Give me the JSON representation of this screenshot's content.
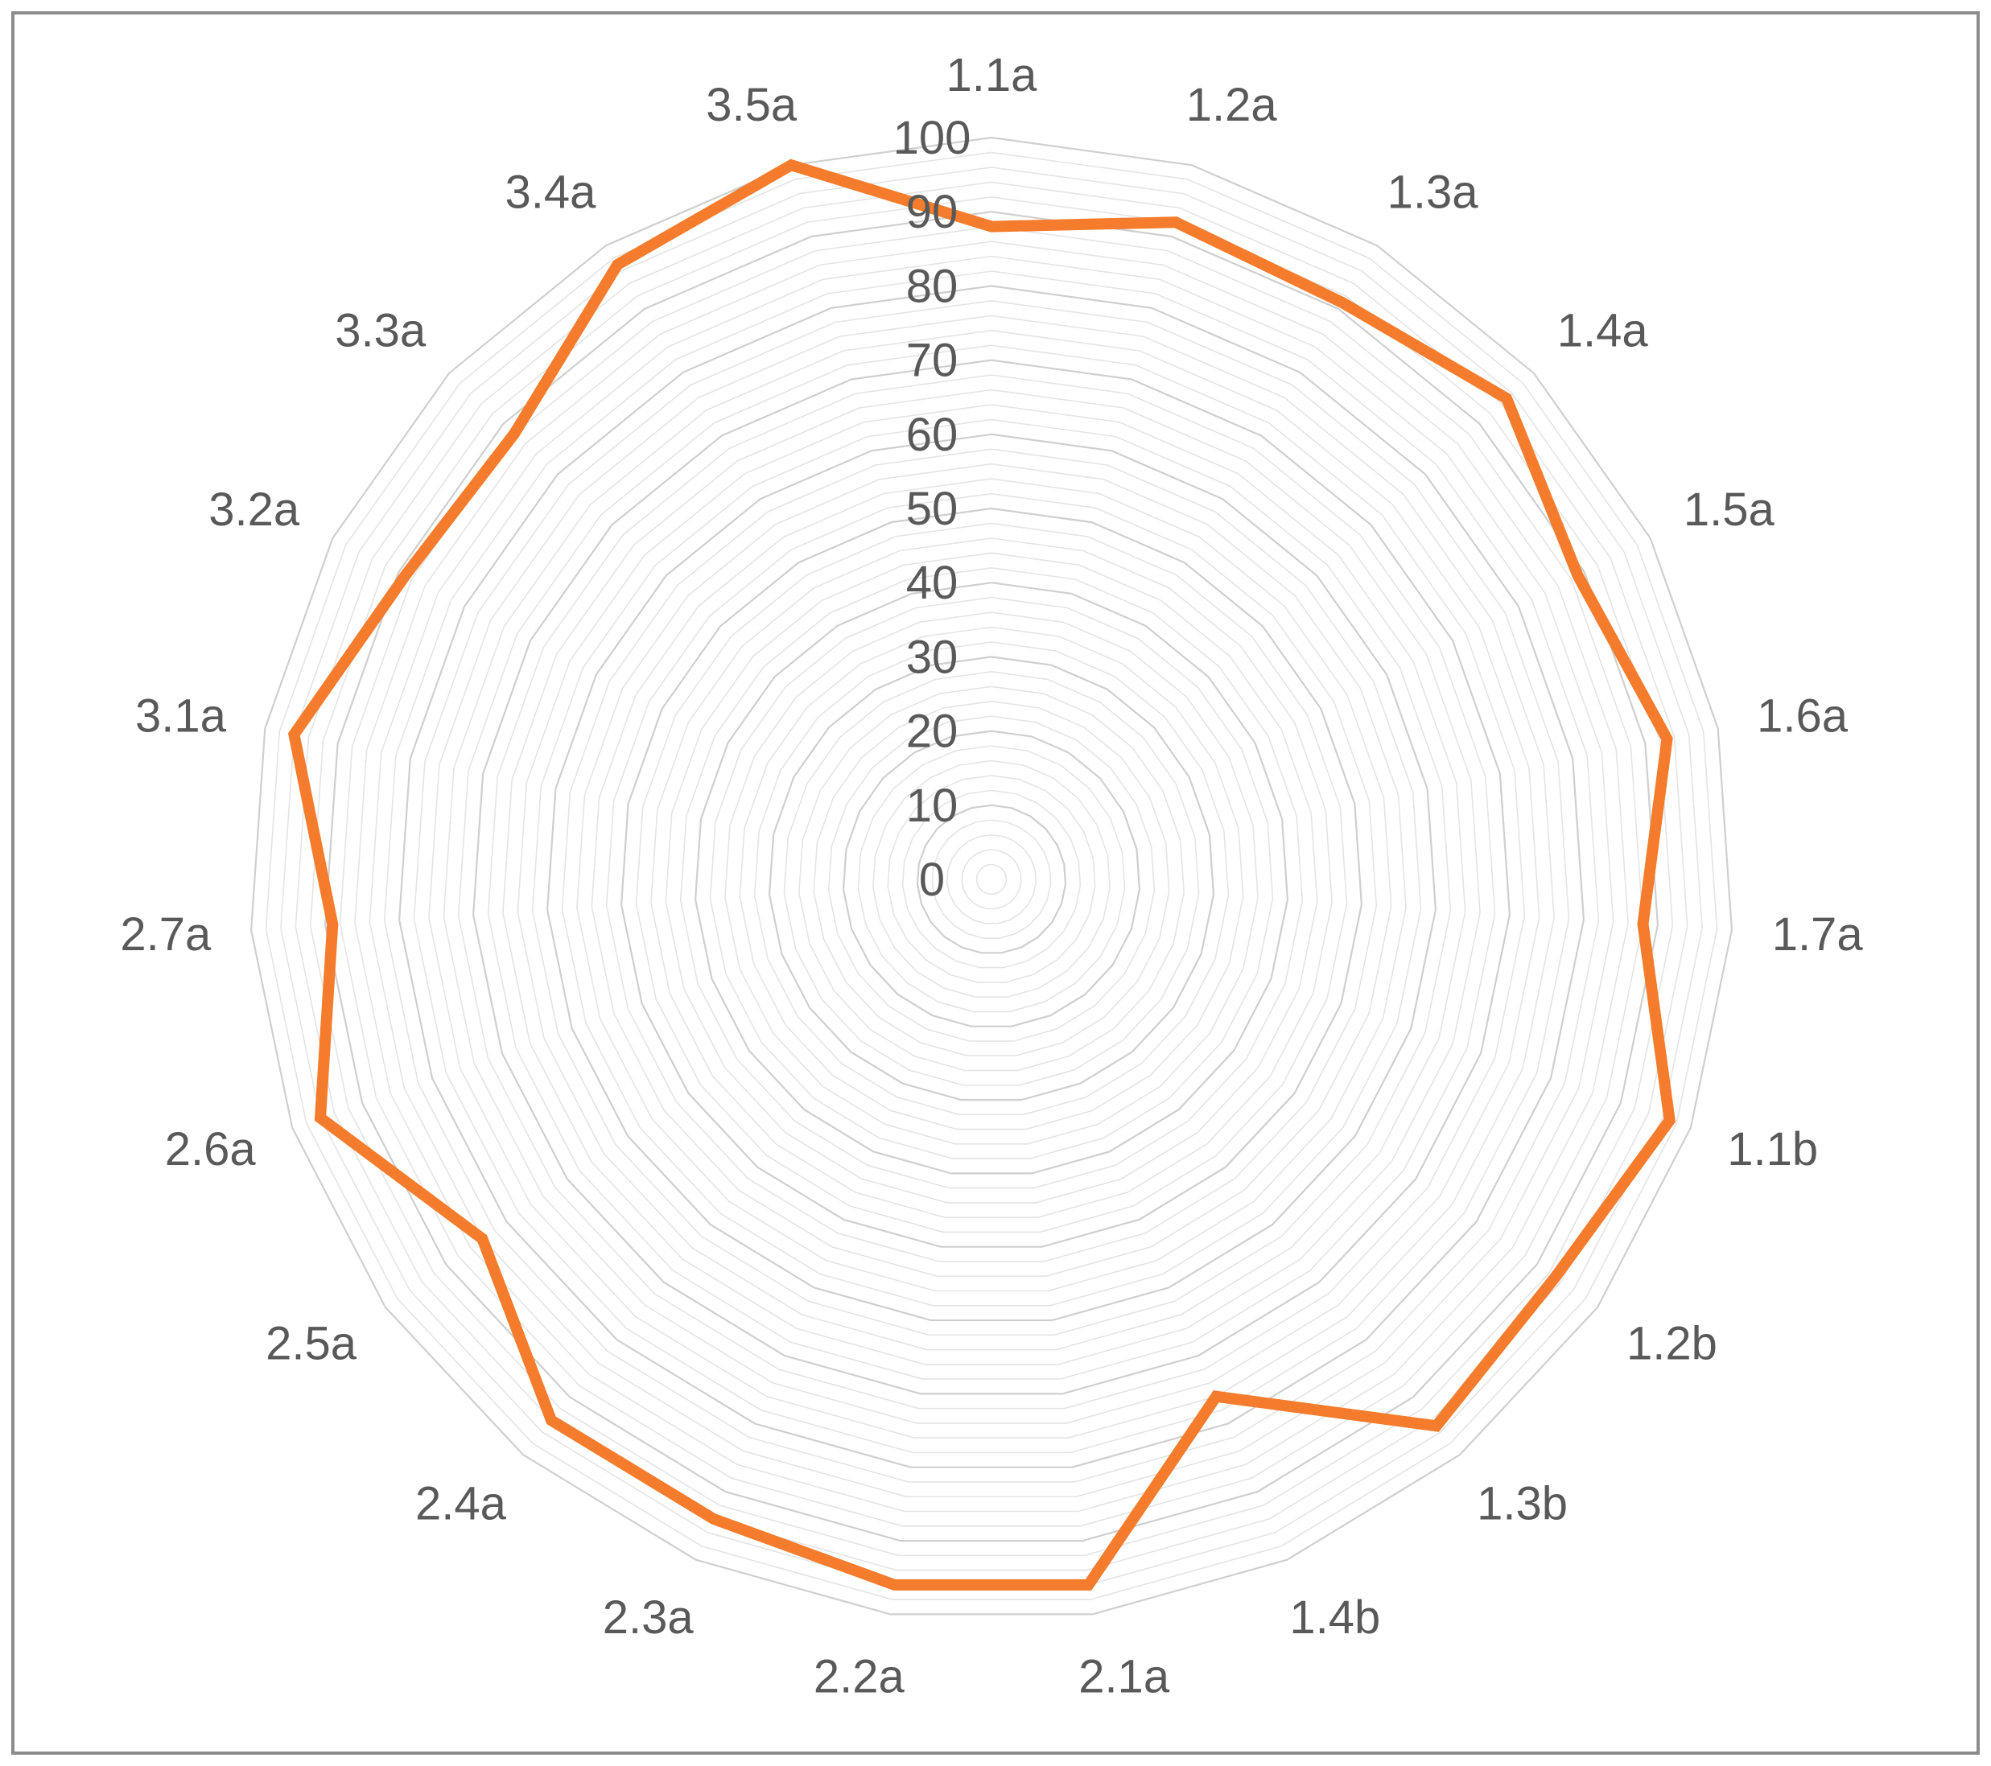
{
  "chart_data": {
    "type": "radar",
    "title": "",
    "categories": [
      "1.1a",
      "1.2a",
      "1.3a",
      "1.4a",
      "1.5a",
      "1.6a",
      "1.7a",
      "1.1b",
      "1.2b",
      "1.3b",
      "1.4b",
      "2.1a",
      "2.2a",
      "2.3a",
      "2.4a",
      "2.5a",
      "2.6a",
      "2.7a",
      "3.1a",
      "3.2a",
      "3.3a",
      "3.4a",
      "3.5a"
    ],
    "series": [
      {
        "values": [
          88,
          92,
          91,
          95,
          89,
          93,
          88,
          97,
          93,
          95,
          76,
          96,
          96,
          94,
          94,
          84,
          96,
          89,
          96,
          89,
          88,
          97,
          100
        ],
        "color": "#f47c2c"
      }
    ],
    "radial_axis": {
      "min": 0,
      "max": 100,
      "ticks": [
        "0",
        "10",
        "20",
        "30",
        "40",
        "50",
        "60",
        "70",
        "80",
        "90",
        "100"
      ],
      "minor_step": 2
    },
    "grid": true,
    "legend": "none",
    "colors": {
      "line": "#f47c2c",
      "label_text": "#595959",
      "grid": "#d9d9d9",
      "frame": "#8c8c8c"
    }
  }
}
